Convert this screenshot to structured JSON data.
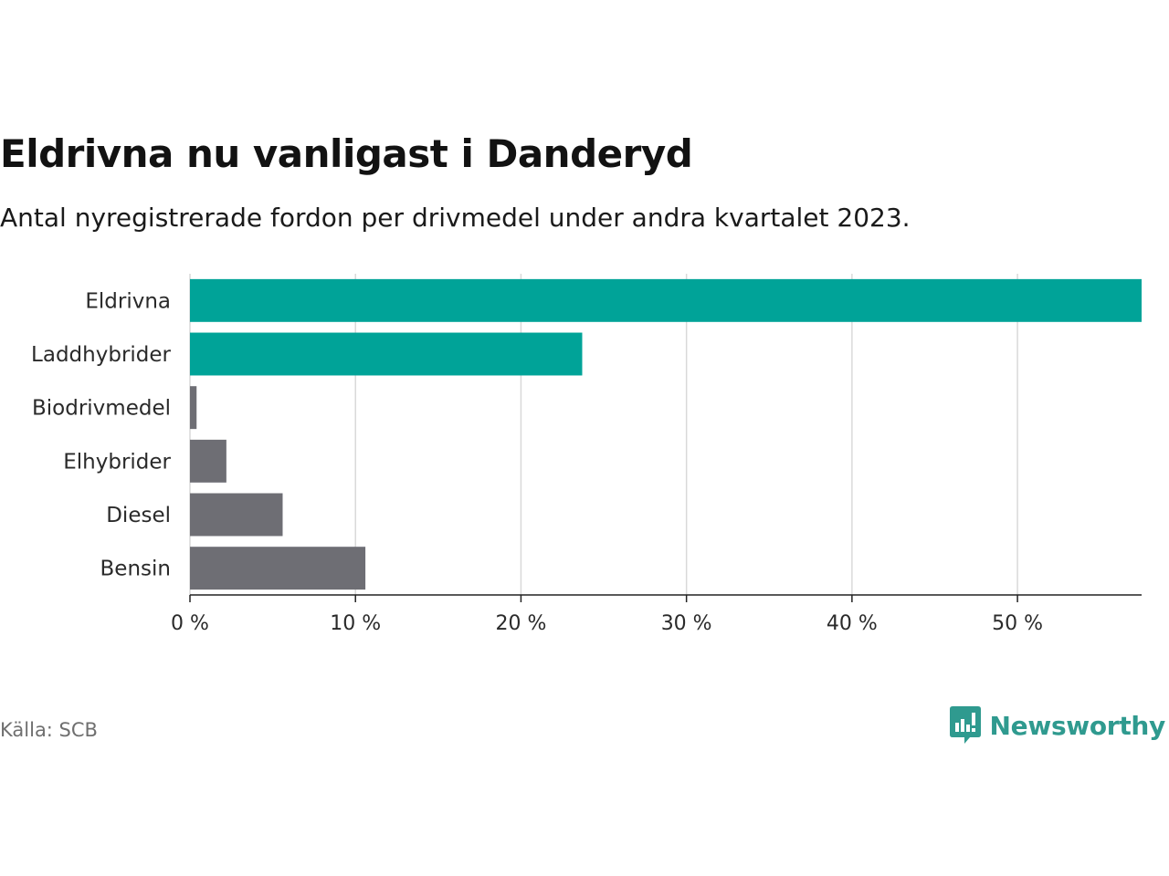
{
  "header": {
    "title": "Eldrivna nu vanligast i Danderyd",
    "subtitle": "Antal nyregistrerade fordon per drivmedel under andra kvartalet 2023."
  },
  "footer": {
    "source": "Källa: SCB",
    "brand_name": "Newsworthy",
    "brand_icon": "bar-chart-speech-bubble-icon"
  },
  "colors": {
    "highlight": "#00a398",
    "other": "#6e6e74",
    "grid": "#d9d9d9",
    "axis": "#222222",
    "brand": "#2f9a8f"
  },
  "chart_data": {
    "type": "bar",
    "orientation": "horizontal",
    "title": "Eldrivna nu vanligast i Danderyd",
    "subtitle": "Antal nyregistrerade fordon per drivmedel under andra kvartalet 2023.",
    "xlabel": "",
    "ylabel": "",
    "categories": [
      "Eldrivna",
      "Laddhybrider",
      "Biodrivmedel",
      "Elhybrider",
      "Diesel",
      "Bensin"
    ],
    "values": [
      57.5,
      23.7,
      0.4,
      2.2,
      5.6,
      10.6
    ],
    "highlighted": [
      true,
      true,
      false,
      false,
      false,
      false
    ],
    "unit": "%",
    "xlim": [
      0,
      57.5
    ],
    "xticks": [
      0,
      10,
      20,
      30,
      40,
      50
    ],
    "xtick_labels": [
      "0 %",
      "10 %",
      "20 %",
      "30 %",
      "40 %",
      "50 %"
    ],
    "grid": "vertical"
  }
}
